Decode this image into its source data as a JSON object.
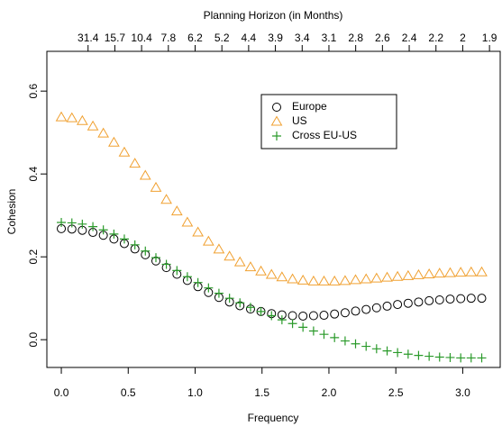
{
  "chart_data": {
    "type": "scatter",
    "title": "Planning Horizon (in Months)",
    "xlabel": "Frequency",
    "ylabel": "Cohesion",
    "x": [
      0,
      0.079,
      0.157,
      0.236,
      0.314,
      0.393,
      0.471,
      0.55,
      0.628,
      0.707,
      0.785,
      0.864,
      0.942,
      1.021,
      1.1,
      1.178,
      1.257,
      1.335,
      1.414,
      1.492,
      1.571,
      1.649,
      1.728,
      1.806,
      1.885,
      1.963,
      2.042,
      2.121,
      2.199,
      2.278,
      2.356,
      2.435,
      2.513,
      2.592,
      2.67,
      2.749,
      2.827,
      2.906,
      2.985,
      3.063,
      3.142
    ],
    "series": [
      {
        "name": "Europe",
        "color": "#000000",
        "marker": "circle",
        "values": [
          0.268,
          0.267,
          0.264,
          0.259,
          0.252,
          0.243,
          0.232,
          0.219,
          0.205,
          0.19,
          0.174,
          0.158,
          0.143,
          0.128,
          0.114,
          0.102,
          0.091,
          0.082,
          0.074,
          0.068,
          0.063,
          0.06,
          0.058,
          0.057,
          0.058,
          0.059,
          0.062,
          0.065,
          0.069,
          0.073,
          0.077,
          0.081,
          0.085,
          0.088,
          0.091,
          0.094,
          0.096,
          0.098,
          0.099,
          0.1,
          0.1
        ]
      },
      {
        "name": "US",
        "color": "#f0a030",
        "marker": "triangle",
        "values": [
          0.537,
          0.535,
          0.528,
          0.515,
          0.498,
          0.476,
          0.452,
          0.425,
          0.396,
          0.367,
          0.338,
          0.31,
          0.283,
          0.259,
          0.237,
          0.218,
          0.201,
          0.187,
          0.175,
          0.165,
          0.157,
          0.151,
          0.146,
          0.143,
          0.141,
          0.141,
          0.141,
          0.142,
          0.144,
          0.146,
          0.148,
          0.15,
          0.152,
          0.154,
          0.156,
          0.158,
          0.16,
          0.161,
          0.162,
          0.163,
          0.163
        ]
      },
      {
        "name": "Cross EU-US",
        "color": "#2a9a2a",
        "marker": "plus",
        "values": [
          0.283,
          0.282,
          0.279,
          0.273,
          0.265,
          0.255,
          0.243,
          0.229,
          0.214,
          0.198,
          0.182,
          0.167,
          0.152,
          0.138,
          0.125,
          0.112,
          0.1,
          0.089,
          0.078,
          0.068,
          0.058,
          0.048,
          0.039,
          0.03,
          0.021,
          0.013,
          0.005,
          -0.003,
          -0.01,
          -0.016,
          -0.022,
          -0.027,
          -0.031,
          -0.035,
          -0.038,
          -0.04,
          -0.042,
          -0.043,
          -0.044,
          -0.044,
          -0.044
        ]
      }
    ],
    "xlim": [
      -0.108,
      3.28
    ],
    "ylim": [
      -0.067,
      0.696
    ],
    "xticks": [
      {
        "value": 0,
        "label": "0.0"
      },
      0.5,
      {
        "value": 1,
        "label": "1.0"
      },
      1.5,
      {
        "value": 2,
        "label": "2.0"
      },
      2.5,
      {
        "value": 3,
        "label": "3.0"
      }
    ],
    "yticks": [
      {
        "value": 0,
        "label": "0.0"
      },
      0.2,
      0.4,
      0.6
    ],
    "x2ticks": [
      {
        "value": 0.2,
        "label": "31.4"
      },
      {
        "value": 0.4,
        "label": "15.7"
      },
      {
        "value": 0.6,
        "label": "10.4"
      },
      {
        "value": 0.8,
        "label": "7.8"
      },
      {
        "value": 1.0,
        "label": "6.2"
      },
      {
        "value": 1.2,
        "label": "5.2"
      },
      {
        "value": 1.4,
        "label": "4.4"
      },
      {
        "value": 1.6,
        "label": "3.9"
      },
      {
        "value": 1.8,
        "label": "3.4"
      },
      {
        "value": 2.0,
        "label": "3.1"
      },
      {
        "value": 2.2,
        "label": "2.8"
      },
      {
        "value": 2.4,
        "label": "2.6"
      },
      {
        "value": 2.6,
        "label": "2.4"
      },
      {
        "value": 2.8,
        "label": "2.2"
      },
      {
        "value": 3.0,
        "label": "2"
      },
      {
        "value": 3.2,
        "label": "1.9"
      }
    ],
    "legend": "top-right"
  }
}
